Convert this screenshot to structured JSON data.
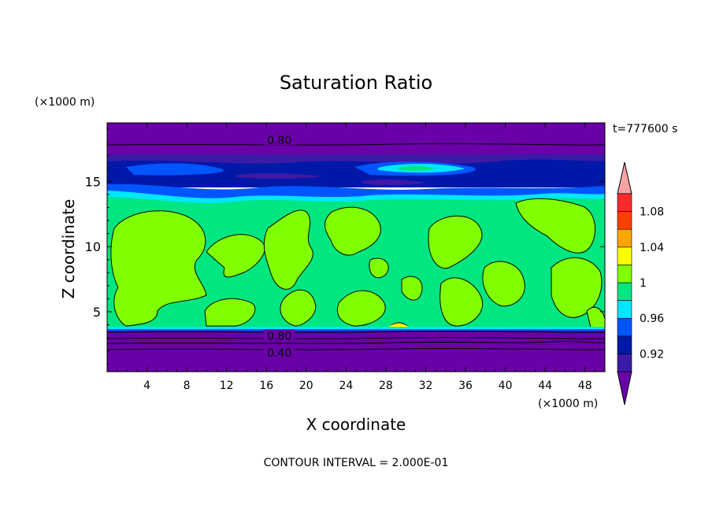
{
  "chart_data": {
    "type": "heatmap",
    "title": "Saturation Ratio",
    "xlabel": "X coordinate",
    "ylabel": "Z coordinate",
    "x_unit": "(×1000 m)",
    "y_unit": "(×1000 m)",
    "time_label": "t=777600 s",
    "footer": "CONTOUR INTERVAL = 2.000E-01",
    "xlim": [
      0,
      50
    ],
    "ylim": [
      0.4,
      19.5
    ],
    "x_ticks": [
      4,
      8,
      12,
      16,
      20,
      24,
      28,
      32,
      36,
      40,
      44,
      48
    ],
    "y_ticks": [
      5,
      10,
      15
    ],
    "contour_labels": [
      {
        "text": "0.80",
        "x": 17.3,
        "y": 18.1
      },
      {
        "text": "0.80",
        "x": 17.3,
        "y": 3.1
      },
      {
        "text": "0.40",
        "x": 17.3,
        "y": 1.8
      }
    ],
    "colorbar": {
      "levels": [
        0.9,
        0.92,
        0.94,
        0.96,
        0.98,
        1.0,
        1.02,
        1.04,
        1.06,
        1.08,
        1.1
      ],
      "tick_labels": [
        "0.92",
        "0.96",
        "1",
        "1.04",
        "1.08"
      ],
      "colors": [
        "#6a00a8",
        "#3b1aa6",
        "#0018a8",
        "#0055ff",
        "#00e6ff",
        "#00e680",
        "#80ff00",
        "#ffff00",
        "#ffa500",
        "#ff4000",
        "#ff2a2a",
        "#f5a3a3"
      ]
    },
    "layers": [
      {
        "z_range": [
          0.4,
          3.6
        ],
        "value": "below 0.90"
      },
      {
        "z_range": [
          3.6,
          14.5
        ],
        "value": "0.98 to 1.02"
      },
      {
        "z_range": [
          14.5,
          17.4
        ],
        "value": "0.90 to 0.96"
      },
      {
        "z_range": [
          17.4,
          19.5
        ],
        "value": "below 0.90"
      }
    ]
  }
}
